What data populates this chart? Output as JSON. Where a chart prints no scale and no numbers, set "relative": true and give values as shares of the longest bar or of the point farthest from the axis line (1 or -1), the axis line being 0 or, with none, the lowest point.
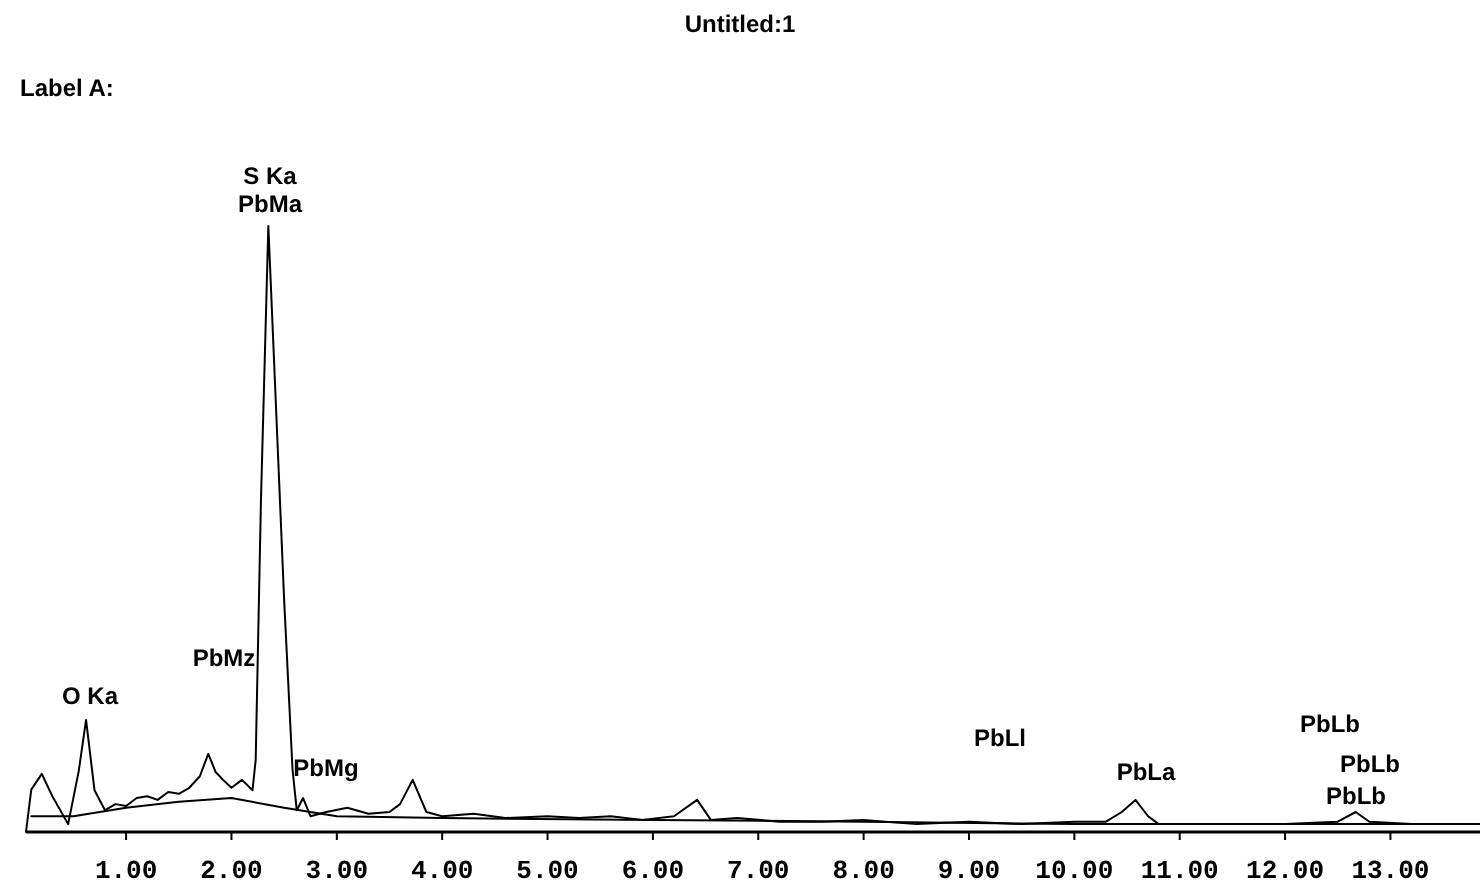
{
  "chart_data": {
    "type": "line",
    "title": "Untitled:1",
    "subtitle": "Label A:",
    "relative": true,
    "xlim": [
      0.05,
      13.85
    ],
    "xticks": [
      {
        "value": 1,
        "label": "1.00"
      },
      {
        "value": 2,
        "label": "2.00"
      },
      {
        "value": 3,
        "label": "3.00"
      },
      {
        "value": 4,
        "label": "4.00"
      },
      {
        "value": 5,
        "label": "5.00"
      },
      {
        "value": 6,
        "label": "6.00"
      },
      {
        "value": 7,
        "label": "7.00"
      },
      {
        "value": 8,
        "label": "8.00"
      },
      {
        "value": 9,
        "label": "9.00"
      },
      {
        "value": 10,
        "label": "10.00"
      },
      {
        "value": 11,
        "label": "11.00"
      },
      {
        "value": 12,
        "label": "12.00"
      },
      {
        "value": 13,
        "label": "13.00"
      }
    ],
    "series": [
      {
        "color": "#000000",
        "x": [
          0.05,
          0.1,
          0.2,
          0.3,
          0.45,
          0.55,
          0.62,
          0.7,
          0.8,
          0.9,
          1.0,
          1.1,
          1.2,
          1.3,
          1.4,
          1.5,
          1.6,
          1.7,
          1.78,
          1.85,
          1.92,
          2.0,
          2.1,
          2.2,
          2.23,
          2.28,
          2.35,
          2.42,
          2.5,
          2.58,
          2.62,
          2.68,
          2.75,
          2.9,
          3.1,
          3.3,
          3.5,
          3.6,
          3.72,
          3.85,
          4.0,
          4.3,
          4.6,
          5.0,
          5.3,
          5.6,
          5.9,
          6.2,
          6.42,
          6.55,
          6.8,
          7.2,
          7.6,
          8.0,
          8.5,
          9.0,
          9.5,
          10.0,
          10.3,
          10.45,
          10.58,
          10.7,
          10.8,
          11.2,
          11.6,
          12.0,
          12.5,
          12.67,
          12.8,
          13.2,
          13.85
        ],
        "values": [
          0,
          0.07,
          0.096,
          0.059,
          0.013,
          0.1,
          0.185,
          0.069,
          0.036,
          0.046,
          0.043,
          0.056,
          0.059,
          0.053,
          0.066,
          0.063,
          0.073,
          0.092,
          0.129,
          0.099,
          0.086,
          0.073,
          0.086,
          0.069,
          0.119,
          0.548,
          1,
          0.713,
          0.383,
          0.102,
          0.036,
          0.056,
          0.026,
          0.033,
          0.04,
          0.03,
          0.033,
          0.046,
          0.086,
          0.033,
          0.026,
          0.03,
          0.023,
          0.026,
          0.023,
          0.026,
          0.02,
          0.026,
          0.053,
          0.02,
          0.023,
          0.017,
          0.017,
          0.02,
          0.013,
          0.017,
          0.013,
          0.017,
          0.017,
          0.033,
          0.053,
          0.026,
          0.013,
          0.013,
          0.013,
          0.013,
          0.017,
          0.033,
          0.017,
          0.013,
          0.013
        ]
      },
      {
        "color": "#000000",
        "x": [
          0.1,
          0.5,
          1.0,
          1.5,
          2.0,
          2.5,
          3.0,
          4.0,
          6.0,
          8.0,
          10.0,
          13.85
        ],
        "values": [
          0.026,
          0.026,
          0.04,
          0.05,
          0.056,
          0.04,
          0.026,
          0.023,
          0.02,
          0.017,
          0.013,
          0.013
        ]
      }
    ],
    "annotations": [
      "S Ka",
      "PbMa",
      "O Ka",
      "PbMz",
      "PbMg",
      "PbLl",
      "PbLa",
      "PbLb",
      "PbLb",
      "PbLb"
    ]
  }
}
